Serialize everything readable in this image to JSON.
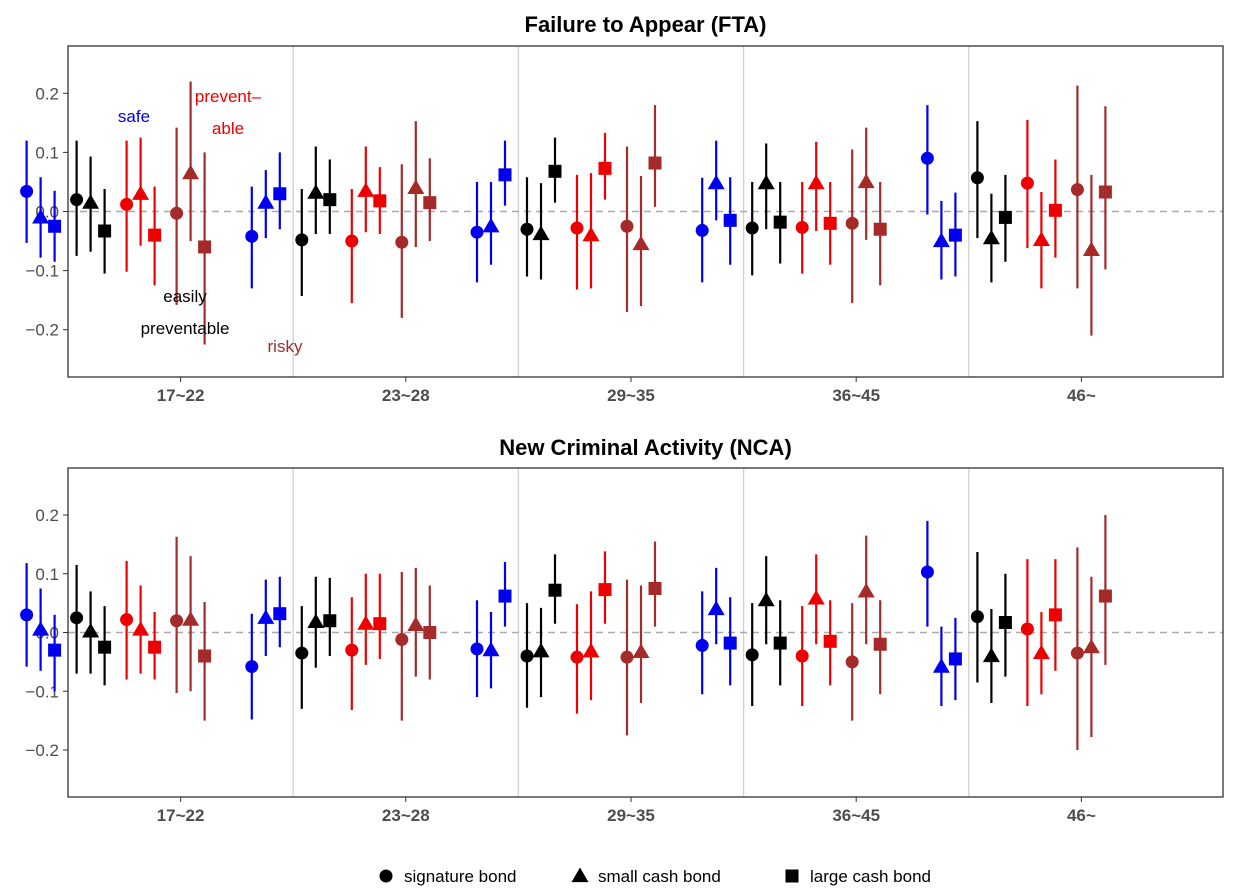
{
  "colors": {
    "safe": "#0000ee",
    "easily_preventable": "#000000",
    "preventable": "#ee0000",
    "risky": "#a52a2a",
    "zero_line": "#aaaaaa",
    "separator": "#d0d0d0",
    "panel_border": "#333333"
  },
  "annotations": {
    "safe": "safe",
    "preventable_line1": "prevent–",
    "preventable_line2": "able",
    "easily_line1": "easily",
    "easily_line2": "preventable",
    "risky": "risky"
  },
  "legend": {
    "placement": "bottom",
    "items": [
      {
        "shape": "circle",
        "label": "signature bond"
      },
      {
        "shape": "triangle",
        "label": "small cash bond"
      },
      {
        "shape": "square",
        "label": "large cash bond"
      }
    ]
  },
  "chart_data": [
    {
      "type": "scatter",
      "title": "Failure to Appear (FTA)",
      "ylim": [
        -0.28,
        0.28
      ],
      "yticks": [
        "0.2",
        "0.1",
        "0.0",
        "−0.1",
        "−0.2"
      ],
      "ytick_values": [
        0.2,
        0.1,
        0.0,
        -0.1,
        -0.2
      ],
      "categories": [
        "17~22",
        "23~28",
        "29~35",
        "36~45",
        "46~"
      ],
      "groups": [
        "safe",
        "easily_preventable",
        "preventable",
        "risky"
      ],
      "bonds": [
        "signature bond",
        "small cash bond",
        "large cash bond"
      ],
      "points": [
        [
          [
            [
              0.034,
              -0.053,
              0.12
            ],
            [
              -0.01,
              -0.078,
              0.058
            ],
            [
              -0.025,
              -0.085,
              0.035
            ]
          ],
          [
            [
              0.02,
              -0.075,
              0.12
            ],
            [
              0.015,
              -0.068,
              0.093
            ],
            [
              -0.033,
              -0.105,
              0.038
            ]
          ],
          [
            [
              0.012,
              -0.102,
              0.12
            ],
            [
              0.03,
              -0.058,
              0.125
            ],
            [
              -0.04,
              -0.125,
              0.042
            ]
          ],
          [
            [
              -0.003,
              -0.158,
              0.142
            ],
            [
              0.065,
              -0.05,
              0.22
            ],
            [
              -0.06,
              -0.225,
              0.1
            ]
          ]
        ],
        [
          [
            [
              -0.042,
              -0.13,
              0.042
            ],
            [
              0.015,
              -0.045,
              0.07
            ],
            [
              0.03,
              -0.03,
              0.1
            ]
          ],
          [
            [
              -0.048,
              -0.143,
              0.038
            ],
            [
              0.032,
              -0.038,
              0.11
            ],
            [
              0.02,
              -0.038,
              0.088
            ]
          ],
          [
            [
              -0.05,
              -0.155,
              0.038
            ],
            [
              0.035,
              -0.035,
              0.11
            ],
            [
              0.018,
              -0.038,
              0.075
            ]
          ],
          [
            [
              -0.052,
              -0.18,
              0.08
            ],
            [
              0.04,
              -0.06,
              0.153
            ],
            [
              0.015,
              -0.05,
              0.09
            ]
          ]
        ],
        [
          [
            [
              -0.035,
              -0.12,
              0.05
            ],
            [
              -0.025,
              -0.09,
              0.05
            ],
            [
              0.062,
              0.01,
              0.12
            ]
          ],
          [
            [
              -0.03,
              -0.11,
              0.058
            ],
            [
              -0.038,
              -0.115,
              0.048
            ],
            [
              0.068,
              0.015,
              0.125
            ]
          ],
          [
            [
              -0.028,
              -0.132,
              0.062
            ],
            [
              -0.04,
              -0.13,
              0.065
            ],
            [
              0.073,
              0.02,
              0.133
            ]
          ],
          [
            [
              -0.025,
              -0.17,
              0.11
            ],
            [
              -0.055,
              -0.16,
              0.06
            ],
            [
              0.082,
              0.008,
              0.18
            ]
          ]
        ],
        [
          [
            [
              -0.032,
              -0.12,
              0.057
            ],
            [
              0.048,
              -0.015,
              0.12
            ],
            [
              -0.015,
              -0.09,
              0.058
            ]
          ],
          [
            [
              -0.028,
              -0.108,
              0.05
            ],
            [
              0.048,
              -0.03,
              0.115
            ],
            [
              -0.018,
              -0.088,
              0.05
            ]
          ],
          [
            [
              -0.027,
              -0.105,
              0.05
            ],
            [
              0.048,
              -0.033,
              0.118
            ],
            [
              -0.02,
              -0.09,
              0.05
            ]
          ],
          [
            [
              -0.02,
              -0.155,
              0.105
            ],
            [
              0.05,
              -0.048,
              0.142
            ],
            [
              -0.03,
              -0.125,
              0.05
            ]
          ]
        ],
        [
          [
            [
              0.09,
              -0.005,
              0.18
            ],
            [
              -0.05,
              -0.115,
              0.018
            ],
            [
              -0.04,
              -0.11,
              0.032
            ]
          ],
          [
            [
              0.057,
              -0.045,
              0.153
            ],
            [
              -0.045,
              -0.12,
              0.03
            ],
            [
              -0.01,
              -0.085,
              0.062
            ]
          ],
          [
            [
              0.048,
              -0.062,
              0.155
            ],
            [
              -0.048,
              -0.13,
              0.033
            ],
            [
              0.002,
              -0.078,
              0.088
            ]
          ],
          [
            [
              0.037,
              -0.13,
              0.213
            ],
            [
              -0.065,
              -0.21,
              0.062
            ],
            [
              0.033,
              -0.098,
              0.178
            ]
          ]
        ]
      ]
    },
    {
      "type": "scatter",
      "title": "New Criminal Activity (NCA)",
      "ylim": [
        -0.28,
        0.28
      ],
      "yticks": [
        "0.2",
        "0.1",
        "0.0",
        "−0.1",
        "−0.2"
      ],
      "ytick_values": [
        0.2,
        0.1,
        0.0,
        -0.1,
        -0.2
      ],
      "categories": [
        "17~22",
        "23~28",
        "29~35",
        "36~45",
        "46~"
      ],
      "groups": [
        "safe",
        "easily_preventable",
        "preventable",
        "risky"
      ],
      "bonds": [
        "signature bond",
        "small cash bond",
        "large cash bond"
      ],
      "points": [
        [
          [
            [
              0.03,
              -0.058,
              0.118
            ],
            [
              0.005,
              -0.065,
              0.075
            ],
            [
              -0.03,
              -0.1,
              0.03
            ]
          ],
          [
            [
              0.025,
              -0.07,
              0.115
            ],
            [
              0.002,
              -0.07,
              0.07
            ],
            [
              -0.025,
              -0.09,
              0.045
            ]
          ],
          [
            [
              0.022,
              -0.08,
              0.122
            ],
            [
              0.005,
              -0.07,
              0.08
            ],
            [
              -0.025,
              -0.08,
              0.035
            ]
          ],
          [
            [
              0.02,
              -0.103,
              0.163
            ],
            [
              0.022,
              -0.1,
              0.13
            ],
            [
              -0.04,
              -0.15,
              0.052
            ]
          ]
        ],
        [
          [
            [
              -0.058,
              -0.148,
              0.032
            ],
            [
              0.025,
              -0.04,
              0.09
            ],
            [
              0.032,
              -0.025,
              0.095
            ]
          ],
          [
            [
              -0.035,
              -0.13,
              0.045
            ],
            [
              0.018,
              -0.06,
              0.095
            ],
            [
              0.02,
              -0.04,
              0.093
            ]
          ],
          [
            [
              -0.03,
              -0.132,
              0.06
            ],
            [
              0.015,
              -0.055,
              0.1
            ],
            [
              0.015,
              -0.045,
              0.1
            ]
          ],
          [
            [
              -0.012,
              -0.15,
              0.103
            ],
            [
              0.013,
              -0.075,
              0.11
            ],
            [
              0.0,
              -0.08,
              0.08
            ]
          ]
        ],
        [
          [
            [
              -0.028,
              -0.11,
              0.055
            ],
            [
              -0.03,
              -0.095,
              0.035
            ],
            [
              0.062,
              0.01,
              0.12
            ]
          ],
          [
            [
              -0.04,
              -0.128,
              0.05
            ],
            [
              -0.032,
              -0.11,
              0.042
            ],
            [
              0.072,
              0.015,
              0.133
            ]
          ],
          [
            [
              -0.042,
              -0.138,
              0.048
            ],
            [
              -0.032,
              -0.115,
              0.07
            ],
            [
              0.073,
              0.015,
              0.138
            ]
          ],
          [
            [
              -0.042,
              -0.175,
              0.09
            ],
            [
              -0.033,
              -0.12,
              0.08
            ],
            [
              0.075,
              0.01,
              0.155
            ]
          ]
        ],
        [
          [
            [
              -0.022,
              -0.105,
              0.07
            ],
            [
              0.04,
              -0.02,
              0.11
            ],
            [
              -0.018,
              -0.09,
              0.06
            ]
          ],
          [
            [
              -0.038,
              -0.125,
              0.05
            ],
            [
              0.055,
              -0.02,
              0.13
            ],
            [
              -0.018,
              -0.09,
              0.055
            ]
          ],
          [
            [
              -0.04,
              -0.125,
              0.045
            ],
            [
              0.058,
              -0.02,
              0.133
            ],
            [
              -0.015,
              -0.09,
              0.055
            ]
          ],
          [
            [
              -0.05,
              -0.15,
              0.05
            ],
            [
              0.07,
              -0.02,
              0.165
            ],
            [
              -0.02,
              -0.105,
              0.055
            ]
          ]
        ],
        [
          [
            [
              0.103,
              0.01,
              0.19
            ],
            [
              -0.058,
              -0.125,
              0.01
            ],
            [
              -0.045,
              -0.115,
              0.025
            ]
          ],
          [
            [
              0.027,
              -0.085,
              0.137
            ],
            [
              -0.04,
              -0.12,
              0.04
            ],
            [
              0.017,
              -0.075,
              0.1
            ]
          ],
          [
            [
              0.006,
              -0.125,
              0.125
            ],
            [
              -0.035,
              -0.105,
              0.035
            ],
            [
              0.03,
              -0.065,
              0.125
            ]
          ],
          [
            [
              -0.035,
              -0.2,
              0.145
            ],
            [
              -0.025,
              -0.178,
              0.095
            ],
            [
              0.062,
              -0.055,
              0.2
            ]
          ]
        ]
      ]
    }
  ]
}
